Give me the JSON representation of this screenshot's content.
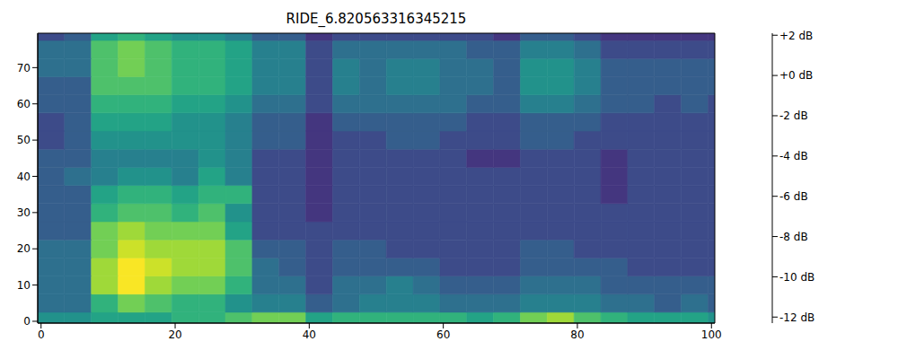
{
  "chart_data": {
    "type": "heatmap",
    "title": "RIDE_6.820563316345215",
    "color": "viridis",
    "xlim": [
      -0.5,
      100.5
    ],
    "xticks": [
      0,
      20,
      40,
      60,
      80,
      100
    ],
    "ylim": [
      -0.5,
      79.5
    ],
    "yticks": [
      0,
      10,
      20,
      30,
      40,
      50,
      60,
      70
    ],
    "x_bins": [
      -0.5,
      3.5,
      7.5,
      11.5,
      15.5,
      19.5,
      23.5,
      27.5,
      31.5,
      35.5,
      39.5,
      43.5,
      47.5,
      51.5,
      55.5,
      59.5,
      63.5,
      67.5,
      71.5,
      75.5,
      79.5,
      83.5,
      87.5,
      91.5,
      95.5,
      99.5,
      100.5
    ],
    "y_bins": [
      -0.5,
      2.5,
      7.5,
      12.5,
      17.5,
      22.5,
      27.5,
      32.5,
      37.5,
      42.5,
      47.5,
      52.5,
      57.5,
      62.5,
      67.5,
      72.5,
      77.5,
      79.5
    ],
    "cells": [
      [
        -5,
        -5,
        -4,
        -4,
        -4,
        -3,
        -3,
        -2,
        -1,
        -1,
        -4,
        -3,
        -3,
        -3,
        -3,
        -3,
        -4,
        -3,
        -1,
        0,
        -2,
        -3,
        -4,
        -4,
        -4,
        -5
      ],
      [
        -7,
        -7,
        -3,
        -1,
        -2,
        -3,
        -3,
        -5,
        -6,
        -6,
        -8,
        -7,
        -6,
        -6,
        -6,
        -7,
        -7,
        -7,
        -6,
        -6,
        -6,
        -7,
        -7,
        -8,
        -7,
        -8
      ],
      [
        -7,
        -7,
        0,
        2,
        0,
        -1,
        -1,
        -3,
        -7,
        -7,
        -9,
        -7,
        -7,
        -6,
        -7,
        -8,
        -8,
        -8,
        -7,
        -7,
        -7,
        -8,
        -8,
        -8,
        -8,
        -8
      ],
      [
        -7,
        -7,
        0,
        2,
        1,
        0,
        0,
        -2,
        -7,
        -8,
        -9,
        -8,
        -8,
        -8,
        -8,
        -9,
        -9,
        -9,
        -8,
        -8,
        -8,
        -8,
        -9,
        -9,
        -9,
        -9
      ],
      [
        -7,
        -7,
        -1,
        1,
        0,
        0,
        0,
        -2,
        -8,
        -8,
        -9,
        -8,
        -8,
        -9,
        -9,
        -9,
        -9,
        -9,
        -8,
        -8,
        -9,
        -9,
        -9,
        -9,
        -9,
        -9
      ],
      [
        -8,
        -8,
        -1,
        0,
        -1,
        -1,
        -1,
        -4,
        -9,
        -9,
        -9,
        -9,
        -9,
        -9,
        -9,
        -9,
        -9,
        -9,
        -9,
        -9,
        -9,
        -9,
        -9,
        -9,
        -9,
        -9
      ],
      [
        -8,
        -8,
        -3,
        -2,
        -2,
        -3,
        -2,
        -5,
        -9,
        -9,
        -10,
        -9,
        -9,
        -9,
        -9,
        -9,
        -9,
        -9,
        -9,
        -9,
        -9,
        -9,
        -9,
        -9,
        -9,
        -9
      ],
      [
        -8,
        -8,
        -4,
        -3,
        -3,
        -4,
        -3,
        -3,
        -9,
        -9,
        -10,
        -9,
        -9,
        -9,
        -9,
        -9,
        -9,
        -9,
        -9,
        -9,
        -9,
        -10,
        -9,
        -9,
        -9,
        -9
      ],
      [
        -8,
        -7,
        -6,
        -5,
        -5,
        -6,
        -4,
        -6,
        -9,
        -9,
        -10,
        -9,
        -9,
        -9,
        -9,
        -9,
        -9,
        -9,
        -9,
        -9,
        -9,
        -10,
        -9,
        -9,
        -9,
        -9
      ],
      [
        -8,
        -8,
        -6,
        -6,
        -6,
        -6,
        -5,
        -6,
        -9,
        -9,
        -10,
        -9,
        -9,
        -9,
        -9,
        -9,
        -10,
        -10,
        -9,
        -9,
        -9,
        -10,
        -9,
        -9,
        -9,
        -9
      ],
      [
        -9,
        -8,
        -5,
        -5,
        -5,
        -5,
        -5,
        -6,
        -8,
        -8,
        -10,
        -9,
        -9,
        -8,
        -8,
        -9,
        -9,
        -9,
        -8,
        -8,
        -9,
        -9,
        -9,
        -9,
        -9,
        -9
      ],
      [
        -9,
        -8,
        -4,
        -4,
        -4,
        -5,
        -5,
        -6,
        -8,
        -8,
        -10,
        -8,
        -8,
        -8,
        -8,
        -8,
        -9,
        -9,
        -8,
        -8,
        -8,
        -9,
        -9,
        -9,
        -9,
        -9
      ],
      [
        -8,
        -8,
        -3,
        -3,
        -3,
        -4,
        -4,
        -5,
        -7,
        -7,
        -9,
        -7,
        -7,
        -7,
        -7,
        -7,
        -8,
        -8,
        -6,
        -6,
        -7,
        -8,
        -8,
        -9,
        -8,
        -9
      ],
      [
        -8,
        -8,
        -2,
        -2,
        -2,
        -3,
        -3,
        -4,
        -6,
        -6,
        -9,
        -6,
        -7,
        -6,
        -6,
        -7,
        -7,
        -8,
        -5,
        -5,
        -6,
        -8,
        -8,
        -8,
        -8,
        -8
      ],
      [
        -7,
        -7,
        -2,
        -1,
        -2,
        -3,
        -3,
        -4,
        -6,
        -6,
        -9,
        -6,
        -7,
        -6,
        -6,
        -7,
        -7,
        -8,
        -5,
        -5,
        -6,
        -8,
        -8,
        -8,
        -8,
        -8
      ],
      [
        -7,
        -7,
        -2,
        -1,
        -2,
        -3,
        -3,
        -4,
        -6,
        -6,
        -9,
        -7,
        -7,
        -7,
        -7,
        -7,
        -8,
        -8,
        -6,
        -6,
        -7,
        -9,
        -9,
        -9,
        -9,
        -9
      ],
      [
        -9,
        -8,
        -4,
        -3,
        -4,
        -5,
        -5,
        -6,
        -8,
        -8,
        -10,
        -9,
        -9,
        -9,
        -9,
        -9,
        -9,
        -10,
        -8,
        -8,
        -9,
        -10,
        -10,
        -10,
        -10,
        -10
      ]
    ],
    "colorbar": {
      "range": [
        -12.3,
        2.1
      ],
      "ticks": [
        {
          "value": 2,
          "label": "+2 dB"
        },
        {
          "value": 0,
          "label": "+0 dB"
        },
        {
          "value": -2,
          "label": "-2 dB"
        },
        {
          "value": -4,
          "label": "-4 dB"
        },
        {
          "value": -6,
          "label": "-6 dB"
        },
        {
          "value": -8,
          "label": "-8 dB"
        },
        {
          "value": -10,
          "label": "-10 dB"
        },
        {
          "value": -12,
          "label": "-12 dB"
        }
      ]
    }
  }
}
